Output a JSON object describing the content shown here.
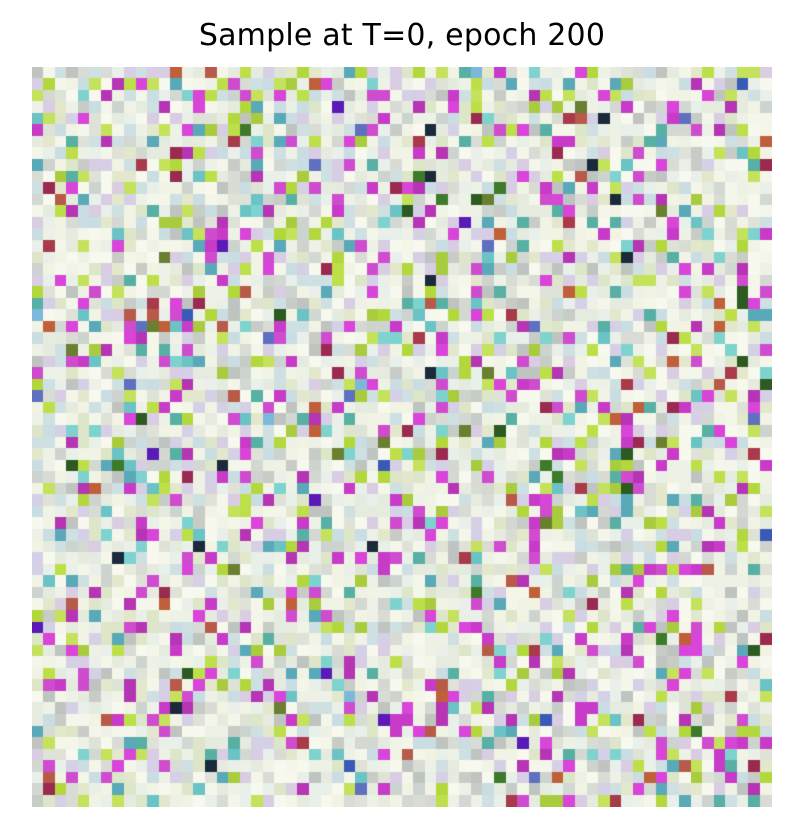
{
  "title": "Sample at T=0, epoch 200",
  "image": {
    "grid": 64,
    "palette": {
      "background": [
        "#f4f6ea",
        "#eef2e6",
        "#e6ebe0",
        "#f7f8ee",
        "#e9efe9",
        "#f1f3e4"
      ],
      "muted": [
        "#d3d8d2",
        "#c8ccc6",
        "#d9dcd5",
        "#bfc4c1",
        "#cdd3cf",
        "#dfe3d7"
      ],
      "tint": [
        "#d8cde3",
        "#cfe0e3",
        "#dde6c8",
        "#d6d0e6",
        "#c9dde2",
        "#e3e8cc"
      ],
      "magenta": [
        "#c83bc8",
        "#d944d9",
        "#b535b5",
        "#cf4ccf"
      ],
      "lime": [
        "#bde04a",
        "#b3d83d",
        "#c4e25b",
        "#a9cc3e"
      ],
      "teal": [
        "#6bc3c5",
        "#5aa9b8",
        "#7fd3cf",
        "#58b0a4"
      ],
      "dark": [
        "#3d7a2a",
        "#6a7f30",
        "#2d5a20",
        "#1a2a3a"
      ],
      "blue": [
        "#3a5ab8",
        "#5a1ab8",
        "#7cb8dc",
        "#6070c0"
      ],
      "red": [
        "#a83a4a",
        "#b85a4a",
        "#9a2a50",
        "#c0603a"
      ]
    }
  }
}
